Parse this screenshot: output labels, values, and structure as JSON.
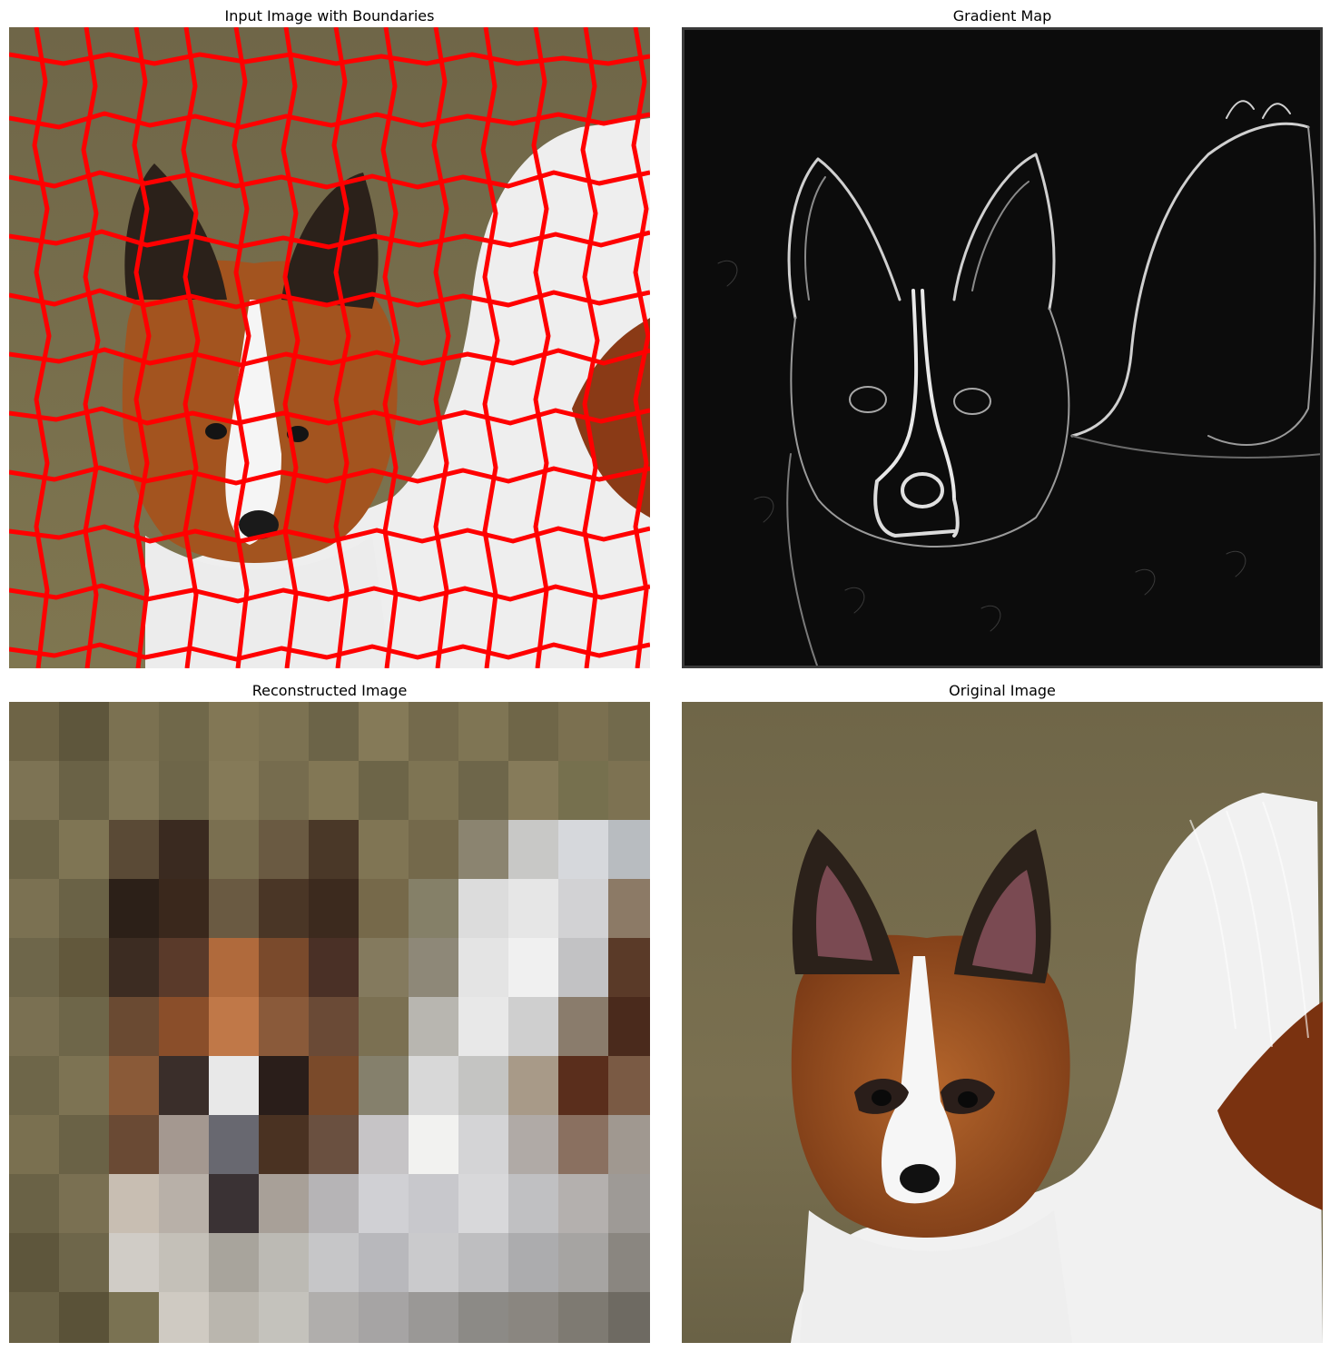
{
  "figure": {
    "panels": [
      {
        "title": "Input Image with Boundaries"
      },
      {
        "title": "Gradient Map"
      },
      {
        "title": "Reconstructed Image"
      },
      {
        "title": "Original Image"
      }
    ]
  },
  "colors": {
    "boundary": "#ff0000",
    "grass_base": "#7a6e4c",
    "grass_dark": "#5e5a3a",
    "fur_white": "#f2f2f2",
    "fur_brown": "#9a4a1c",
    "ear_dark": "#2a1e16",
    "gradient_bg": "#0c0c0c",
    "gradient_edge": "#d8d8d8"
  }
}
